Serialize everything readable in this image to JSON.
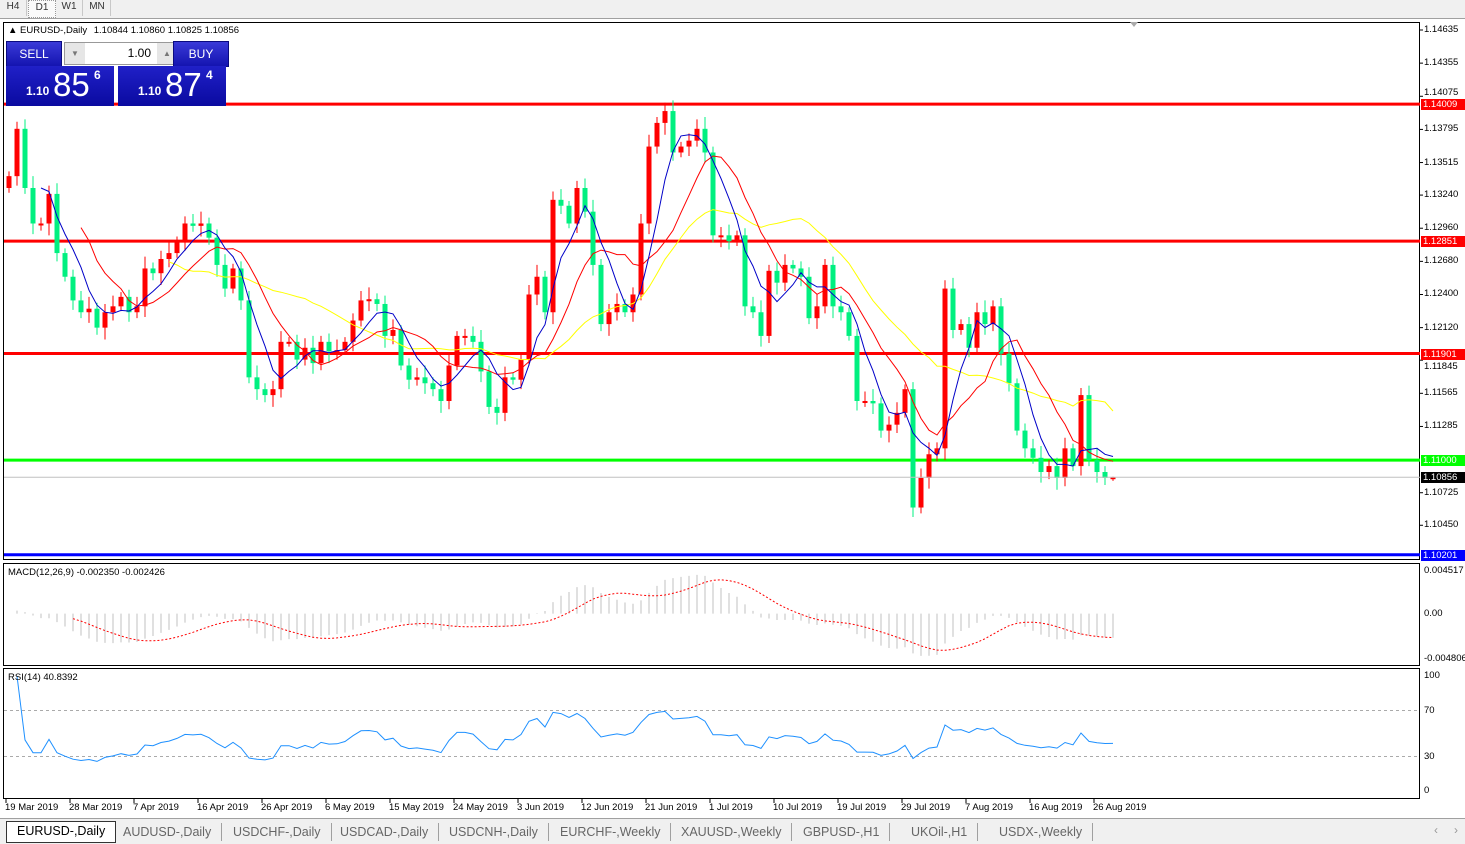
{
  "timeframes": [
    {
      "label": "H4",
      "active": false
    },
    {
      "label": "D1",
      "active": true
    },
    {
      "label": "W1",
      "active": false
    },
    {
      "label": "MN",
      "active": false
    }
  ],
  "chart": {
    "title": "EURUSD-,Daily",
    "ohlc_text": "1.10844 1.10860 1.10825 1.10856",
    "bid_label": "1.10856"
  },
  "trade_panel": {
    "sell_label": "SELL",
    "buy_label": "BUY",
    "lot": "1.00",
    "sell_price": {
      "big": "1.10",
      "main": "85",
      "pip": "6"
    },
    "buy_price": {
      "big": "1.10",
      "main": "87",
      "pip": "4"
    }
  },
  "colors": {
    "bull": "#ff0000",
    "bear": "#00f080",
    "ma_fast": "#0000c8",
    "ma_mid": "#ff0000",
    "ma_slow": "#ffff00",
    "rsi": "#1e90ff",
    "macd_hist": "#c0c0c0",
    "macd_signal": "#ff0000"
  },
  "chart_data": {
    "type": "candlestick",
    "symbol": "EURUSD-",
    "timeframe": "Daily",
    "last_bar": {
      "open": 1.10844,
      "high": 1.1086,
      "low": 1.10825,
      "close": 1.10856
    },
    "close": [
      1.134,
      1.138,
      1.133,
      1.13,
      1.13,
      1.1325,
      1.1275,
      1.1255,
      1.1235,
      1.1225,
      1.1228,
      1.1212,
      1.1225,
      1.123,
      1.1238,
      1.1225,
      1.123,
      1.1262,
      1.1258,
      1.127,
      1.1275,
      1.1285,
      1.13,
      1.1298,
      1.13,
      1.1288,
      1.1265,
      1.1245,
      1.1262,
      1.1235,
      1.117,
      1.116,
      1.1155,
      1.116,
      1.12,
      1.12,
      1.1185,
      1.1195,
      1.1182,
      1.12,
      1.1192,
      1.1193,
      1.12,
      1.1218,
      1.1235,
      1.1236,
      1.1232,
      1.1205,
      1.121,
      1.118,
      1.1168,
      1.117,
      1.1165,
      1.116,
      1.115,
      1.118,
      1.1205,
      1.1205,
      1.12,
      1.1175,
      1.1145,
      1.114,
      1.117,
      1.1168,
      1.1185,
      1.124,
      1.1255,
      1.1225,
      1.132,
      1.1315,
      1.13,
      1.133,
      1.131,
      1.1265,
      1.1215,
      1.1225,
      1.1232,
      1.1225,
      1.124,
      1.13,
      1.1365,
      1.1385,
      1.1395,
      1.136,
      1.1365,
      1.137,
      1.138,
      1.136,
      1.129,
      1.129,
      1.1285,
      1.129,
      1.123,
      1.1225,
      1.1205,
      1.126,
      1.125,
      1.1265,
      1.1262,
      1.1255,
      1.122,
      1.123,
      1.1265,
      1.123,
      1.1225,
      1.1205,
      1.115,
      1.115,
      1.1148,
      1.1125,
      1.113,
      1.114,
      1.116,
      1.106,
      1.1085,
      1.1105,
      1.111,
      1.1245,
      1.121,
      1.1215,
      1.1195,
      1.1225,
      1.1215,
      1.123,
      1.119,
      1.1165,
      1.1125,
      1.111,
      1.1102,
      1.109,
      1.1095,
      1.1085,
      1.111,
      1.1095,
      1.1155,
      1.11,
      1.109,
      1.1085,
      1.10856
    ],
    "price_axis": {
      "range": [
        1.1017,
        1.147
      ],
      "ticks": [
        "1.14635",
        "1.14355",
        "1.14075",
        "1.13795",
        "1.13515",
        "1.13240",
        "1.12960",
        "1.12680",
        "1.12400",
        "1.12120",
        "1.11845",
        "1.11565",
        "1.11285",
        "1.10725",
        "1.10450"
      ]
    },
    "horizontal_lines": [
      {
        "value": "1.14009",
        "color": "#ff0000"
      },
      {
        "value": "1.12851",
        "color": "#ff0000"
      },
      {
        "value": "1.11901",
        "color": "#ff0000"
      },
      {
        "value": "1.11000",
        "color": "#00ff00"
      },
      {
        "value": "1.10201",
        "color": "#0000ff"
      }
    ],
    "date_labels": [
      "19 Mar 2019",
      "28 Mar 2019",
      "7 Apr 2019",
      "16 Apr 2019",
      "26 Apr 2019",
      "6 May 2019",
      "15 May 2019",
      "24 May 2019",
      "3 Jun 2019",
      "12 Jun 2019",
      "21 Jun 2019",
      "1 Jul 2019",
      "10 Jul 2019",
      "19 Jul 2019",
      "29 Jul 2019",
      "7 Aug 2019",
      "16 Aug 2019",
      "26 Aug 2019"
    ],
    "macd": {
      "label": "MACD(12,26,9) -0.002350 -0.002426",
      "range": [
        -0.004806,
        0.004517
      ],
      "ticks": [
        "0.004517",
        "0.00",
        "-0.004806"
      ]
    },
    "rsi": {
      "label": "RSI(14) 40.8392",
      "range": [
        0,
        100
      ],
      "levels": [
        70,
        30
      ],
      "ticks": [
        "100",
        "70",
        "30",
        "0"
      ]
    }
  },
  "tabs": [
    {
      "label": "EURUSD-,Daily",
      "active": true
    },
    {
      "label": "AUDUSD-,Daily"
    },
    {
      "label": "USDCHF-,Daily"
    },
    {
      "label": "USDCAD-,Daily"
    },
    {
      "label": "USDCNH-,Daily"
    },
    {
      "label": "EURCHF-,Weekly"
    },
    {
      "label": "XAUUSD-,Weekly"
    },
    {
      "label": "GBPUSD-,H1"
    },
    {
      "label": "UKOil-,H1"
    },
    {
      "label": "USDX-,Weekly"
    }
  ],
  "tab_scroll": {
    "left": "‹",
    "right": "›"
  }
}
